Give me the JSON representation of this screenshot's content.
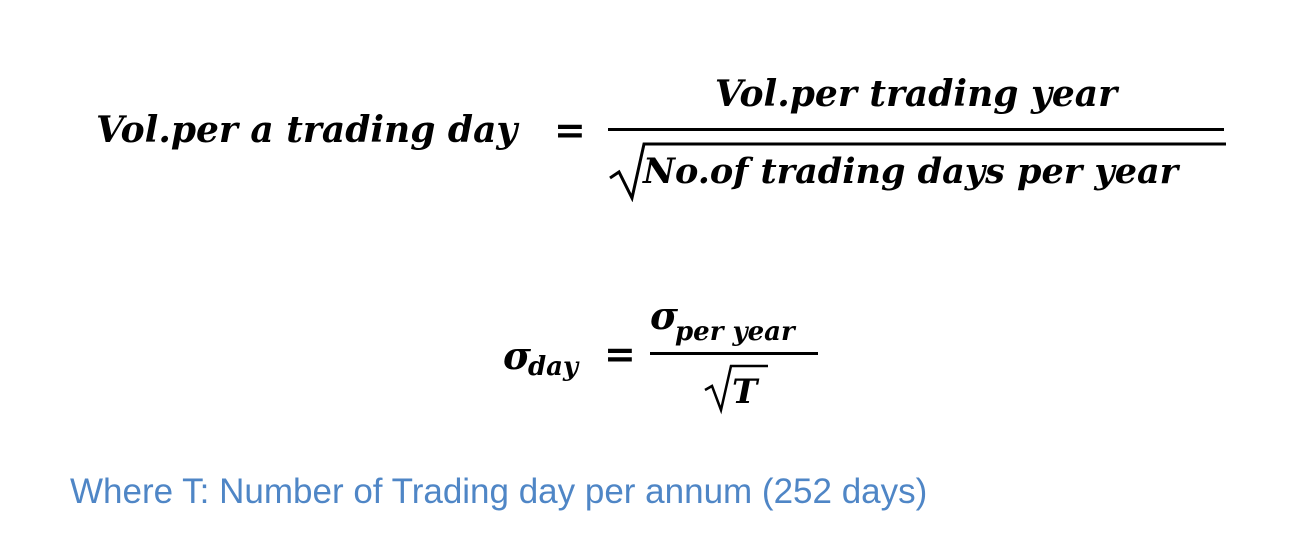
{
  "equation1": {
    "lhs": "Vol.per a trading day",
    "equals": "=",
    "numerator": "Vol.per trading year",
    "denominator": "No.of trading days per year"
  },
  "equation2": {
    "lhs_symbol": "σ",
    "lhs_subscript": "day",
    "equals": "=",
    "numerator_symbol": "σ",
    "numerator_subscript": "per year",
    "denominator": "T"
  },
  "caption": {
    "text": "Where T: Number of Trading day per annum (252 days)",
    "color": "#4f86c6"
  }
}
